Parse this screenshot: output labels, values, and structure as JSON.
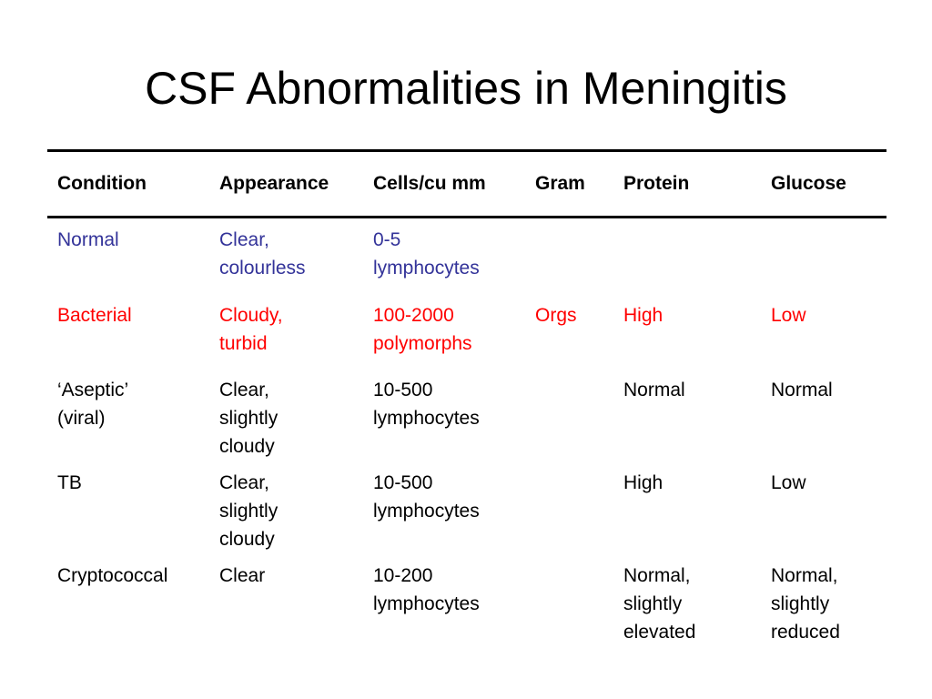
{
  "slide": {
    "title": "CSF Abnormalities in Meningitis"
  },
  "colors": {
    "normal_row": "#333399",
    "bacterial_row": "#ff0000",
    "text": "#000000",
    "background": "#ffffff"
  },
  "table": {
    "headers": {
      "condition": "Condition",
      "appearance": "Appearance",
      "cells": "Cells/cu mm",
      "gram": "Gram",
      "protein": "Protein",
      "glucose": "Glucose"
    },
    "rows": [
      {
        "condition": [
          "Normal"
        ],
        "appearance": [
          "Clear,",
          "colourless"
        ],
        "cells": [
          "0-5",
          "lymphocytes"
        ],
        "gram": [],
        "protein": [],
        "glucose": []
      },
      {
        "condition": [
          "Bacterial"
        ],
        "appearance": [
          "Cloudy,",
          "turbid"
        ],
        "cells": [
          "100-2000",
          "polymorphs"
        ],
        "gram": [
          "Orgs"
        ],
        "protein": [
          "High"
        ],
        "glucose": [
          "Low"
        ]
      },
      {
        "condition": [
          "‘Aseptic’",
          "(viral)"
        ],
        "appearance": [
          "Clear,",
          "slightly",
          "cloudy"
        ],
        "cells": [
          "10-500",
          "lymphocytes"
        ],
        "gram": [],
        "protein": [
          "Normal"
        ],
        "glucose": [
          "Normal"
        ]
      },
      {
        "condition": [
          "TB"
        ],
        "appearance": [
          "Clear,",
          "slightly",
          "cloudy"
        ],
        "cells": [
          "10-500",
          "lymphocytes"
        ],
        "gram": [],
        "protein": [
          "High"
        ],
        "glucose": [
          "Low"
        ]
      },
      {
        "condition": [
          "Cryptococcal"
        ],
        "appearance": [
          "Clear"
        ],
        "cells": [
          "10-200",
          "lymphocytes"
        ],
        "gram": [],
        "protein": [
          "Normal,",
          "slightly",
          "elevated"
        ],
        "glucose": [
          "Normal,",
          "slightly",
          "reduced"
        ]
      }
    ]
  }
}
